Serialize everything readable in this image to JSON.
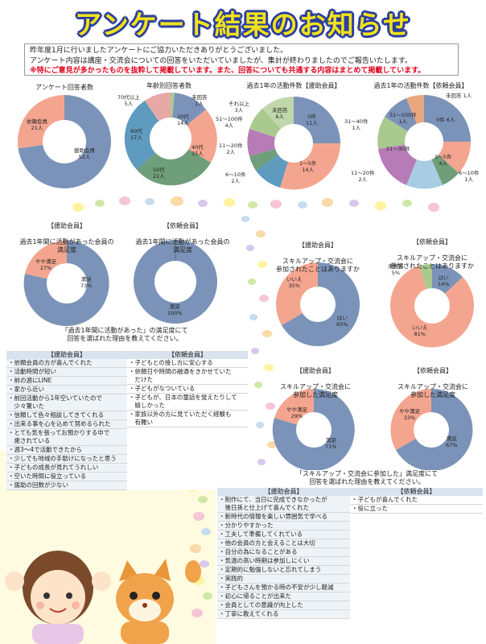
{
  "header": {
    "title": "アンケート結果のお知らせ",
    "intro_line1": "昨年度1月に行いましたアンケートにご協力いただきありがとうございました。",
    "intro_line2": "アンケート内容は講座・交流会についての回答をいただいていましたが、集計が終わりましたのでご報告いたします。",
    "intro_line3": "※特にご意見が多かったものを抜粋して掲載しています。また、回答についても共通する内容はまとめて掲載しています。"
  },
  "colors": {
    "title_fill": "#f3e21a",
    "title_outline": "#2b3f9e",
    "blue": "#7b93b8",
    "salmon": "#f4a58f",
    "green": "#a9c98f",
    "teal": "#5f9bbf",
    "purple": "#b77bb7",
    "lightblue": "#a8cde3",
    "darkgreen": "#6f9e7a",
    "peach": "#e9a77f",
    "rose": "#e8a9a6"
  },
  "charts": {
    "respondents": {
      "title": "アンケート回答者数",
      "labels": [
        "依頼会員\n21人",
        "援助会員\n52人"
      ]
    },
    "age": {
      "title": "年齢別回答者数",
      "labels": [
        "70代以上\n5人",
        "未回答\n1人",
        "30代\n14人",
        "40代\n15人",
        "50代\n21人",
        "60代\n17人"
      ]
    },
    "helper_count": {
      "title": "過去1年の活動件数【援助会員】",
      "labels": [
        "未回答\n6人",
        "0件\n11人",
        "それ以上\n3人",
        "51〜100件\n4人",
        "11〜20件\n2人",
        "6〜10件\n2人",
        "1〜5件\n14人"
      ]
    },
    "client_count": {
      "title": "過去1年の活動件数【依頼会員】",
      "labels": [
        "未回答 1人",
        "31〜40件\n1人",
        "51〜100件\n1人",
        "0件 6人",
        "21〜30件",
        "1〜5件\n4人",
        "11〜20件\n2人",
        "6〜10件\n1人"
      ]
    },
    "helper_sat": {
      "head": "【援助会員】",
      "title": "過去1年間に活動があった会員の\n満足度",
      "labels": [
        "やや満足\n27%",
        "満足\n73%"
      ]
    },
    "client_sat": {
      "head": "【依頼会員】",
      "title": "過去1年間に活動があった会員の\n満足度",
      "labels": [
        "満足\n100%"
      ]
    },
    "helper_join": {
      "head": "【援助会員】",
      "title": "スキルアップ・交流会に\n参加されたことはありますか",
      "labels": [
        "いいえ\n35%",
        "はい\n65%"
      ]
    },
    "client_join": {
      "head": "【依頼会員】",
      "title": "スキルアップ・交流会に\n参加されたことはありますか",
      "labels": [
        "未回答\n5%",
        "はい\n14%",
        "いいえ\n81%"
      ]
    },
    "helper_join_sat": {
      "head": "【援助会員】",
      "title": "スキルアップ・交流会に\n参加した満足度",
      "labels": [
        "やや満足\n29%",
        "満足\n71%"
      ]
    },
    "client_join_sat": {
      "head": "【依頼会員】",
      "title": "スキルアップ・交流会に\n参加した満足度",
      "labels": [
        "やや満足\n33%",
        "満足\n67%"
      ]
    }
  },
  "note1": "「過去1年間に活動があった」の満足度にて\n回答を選ばれた理由を教えてください。",
  "note2": "「スキルアップ・交流会に参加した」満足度にて\n回答を選ばれた理由を教えてください。",
  "table1": {
    "col1_head": "【援助会員】",
    "col2_head": "【依頼会員】",
    "col1": [
      "・依頼会員の方が喜んでくれた",
      "・活動時間が短い",
      "・前の週にLINE",
      "・家から近い",
      "・前回活動から1年空いていたので\n　少々驚いた",
      "・信頼して色々相談してきてくれる",
      "・出来る事を心を込めて努めるられた",
      "・とても気を張ってお預かりする中で\n　癒されている",
      "・週3〜4で活動できたから",
      "・少しでも地域の手助けになったと思う",
      "・子どもの成長が見れてうれしい",
      "・空いた時間に役立っている",
      "・援助の回数が少ない"
    ],
    "col2": [
      "・子どもとの接し方に安心する",
      "・依頼日や時間の融通をきかせていた\n　だけた",
      "・子どもがなついている",
      "・子どもが、日本の童話を覚えたりして\n　嬉しかった",
      "・家族以外の方に見ていただく経験も\n　有難い"
    ]
  },
  "table2": {
    "col1_head": "【援助会員】",
    "col2_head": "【依頼会員】",
    "col1": [
      "・制作にて、当日に完成できなかったが\n　後日孫と仕上げて喜んでくれた",
      "・新時代の情報を楽しい雰囲気で学べる",
      "・分かりやすかった",
      "・工夫して準備してくれている",
      "・他の会員の方と会えることは大切",
      "・自分の為になることがある",
      "・気温の高い時期は参加しにくい",
      "・定期的に勉強しないと忘れてしまう",
      "・実践的",
      "・子どもさんを預かる時の不安が少し軽減",
      "・初心に帰ることが出来た",
      "・会員としての意識が向上した",
      "・丁寧に教えてくれる"
    ],
    "col2": [
      "・子どもが喜んでくれた",
      "・役に立った"
    ]
  }
}
